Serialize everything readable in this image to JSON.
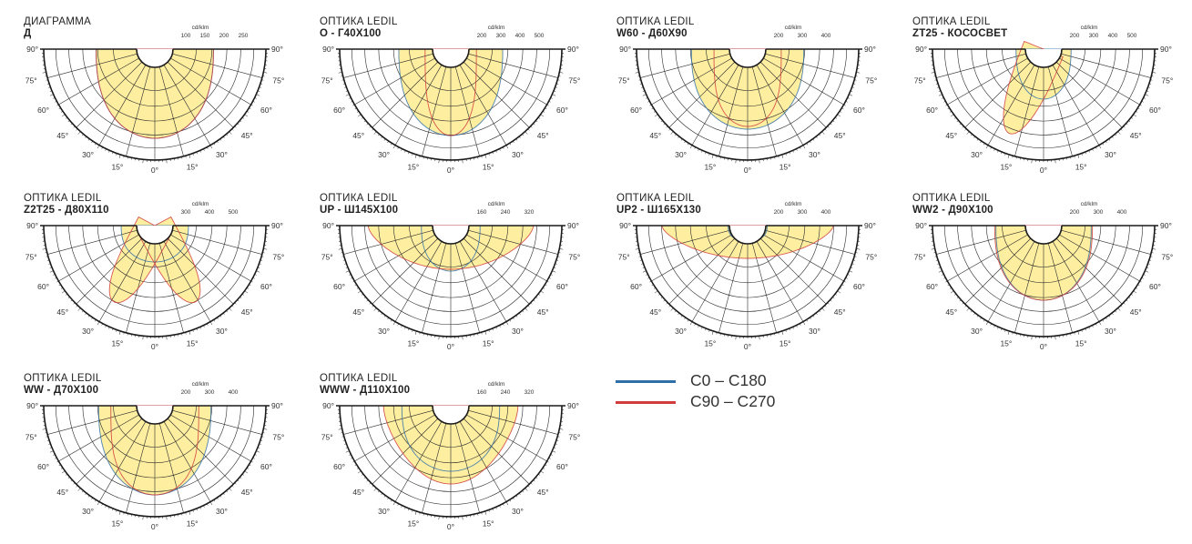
{
  "colors": {
    "c0": "#2f6fa8",
    "c90": "#d13b3b",
    "fill": "#fdeea0",
    "fill_border": "#b8b87a",
    "axis": "#1a1a1a",
    "grid": "#2a2a2a"
  },
  "legend": [
    {
      "label": "C0 – C180",
      "color": "#2f6fa8"
    },
    {
      "label": "C90 – C270",
      "color": "#d13b3b"
    }
  ],
  "panels": [
    {
      "category": "ДИАГРАММА",
      "name": "Д",
      "unit": "cd/klm",
      "ticks": [
        "100",
        "150",
        "200",
        "250"
      ],
      "curves": [
        {
          "curve": "C0",
          "shape": "round",
          "w": 0.96,
          "d": 0.98
        },
        {
          "curve": "C90",
          "shape": "round",
          "w": 0.96,
          "d": 0.98
        }
      ]
    },
    {
      "category": "ОПТИКА LEDIL",
      "name": "O - Г40Х100",
      "unit": "cd/klm",
      "ticks": [
        "200",
        "300",
        "400",
        "500"
      ],
      "curves": [
        {
          "curve": "C0",
          "shape": "round",
          "w": 0.85,
          "d": 0.95
        },
        {
          "curve": "C90",
          "shape": "narrow",
          "w": 0.42,
          "d": 0.95
        }
      ]
    },
    {
      "category": "ОПТИКА LEDIL",
      "name": "W60 - Д60Х90",
      "unit": "cd/klm",
      "ticks": [
        "200",
        "300",
        "400"
      ],
      "curves": [
        {
          "curve": "C0",
          "shape": "round",
          "w": 0.92,
          "d": 0.88
        },
        {
          "curve": "C90",
          "shape": "narrow",
          "w": 0.55,
          "d": 0.85
        }
      ]
    },
    {
      "category": "ОПТИКА LEDIL",
      "name": "ZT25 - КОСОСВЕТ",
      "unit": "cd/klm",
      "ticks": [
        "200",
        "300",
        "400",
        "500"
      ],
      "curves": [
        {
          "curve": "C0",
          "shape": "round",
          "w": 0.45,
          "d": 0.55
        },
        {
          "curve": "C90",
          "shape": "tilt",
          "tilt": 22,
          "w": 0.34,
          "d": 1.0
        }
      ]
    },
    {
      "category": "ОПТИКА LEDIL",
      "name": "Z2T25 - Д80Х110",
      "unit": "cd/klm",
      "ticks": [
        "300",
        "400",
        "500"
      ],
      "curves": [
        {
          "curve": "C0",
          "shape": "round",
          "w": 0.55,
          "d": 0.4
        },
        {
          "curve": "C90",
          "shape": "twin",
          "tilt": 28,
          "w": 0.3,
          "d": 0.95
        }
      ]
    },
    {
      "category": "ОПТИКА LEDIL",
      "name": "UP - Ш145Х100",
      "unit": "cd/klm",
      "ticks": [
        "160",
        "240",
        "320"
      ],
      "curves": [
        {
          "curve": "C0",
          "shape": "round",
          "w": 0.48,
          "d": 0.5
        },
        {
          "curve": "C90",
          "shape": "wide",
          "w": 1.35,
          "d": 0.48
        }
      ]
    },
    {
      "category": "ОПТИКА LEDIL",
      "name": "UP2 - Ш165Х130",
      "unit": "cd/klm",
      "ticks": [
        "200",
        "300",
        "400"
      ],
      "curves": [
        {
          "curve": "C0",
          "shape": "round",
          "w": 0.32,
          "d": 0.18
        },
        {
          "curve": "C90",
          "shape": "wide",
          "w": 1.4,
          "d": 0.36
        }
      ]
    },
    {
      "category": "ОПТИКА LEDIL",
      "name": "WW2 - Д90Х100",
      "unit": "cd/klm",
      "ticks": [
        "200",
        "300",
        "400"
      ],
      "curves": [
        {
          "curve": "C0",
          "shape": "round",
          "w": 0.78,
          "d": 0.82
        },
        {
          "curve": "C90",
          "shape": "round",
          "w": 0.8,
          "d": 0.82
        }
      ]
    },
    {
      "category": "ОПТИКА LEDIL",
      "name": "WW - Д70Х100",
      "unit": "cd/klm",
      "ticks": [
        "200",
        "300",
        "400"
      ],
      "curves": [
        {
          "curve": "C0",
          "shape": "round",
          "w": 0.92,
          "d": 0.98
        },
        {
          "curve": "C90",
          "shape": "narrow",
          "w": 0.72,
          "d": 0.98
        }
      ]
    },
    {
      "category": "ОПТИКА LEDIL",
      "name": "WWW - Д110Х100",
      "unit": "cd/klm",
      "ticks": [
        "160",
        "240",
        "320"
      ],
      "curves": [
        {
          "curve": "C0",
          "shape": "round",
          "w": 0.8,
          "d": 0.72
        },
        {
          "curve": "C90",
          "shape": "wide",
          "w": 1.1,
          "d": 0.86
        }
      ]
    }
  ],
  "angles": [
    "90°",
    "75°",
    "60°",
    "45°",
    "30°",
    "15°",
    "0°",
    "15°",
    "30°",
    "45°",
    "60°",
    "75°",
    "90°"
  ]
}
